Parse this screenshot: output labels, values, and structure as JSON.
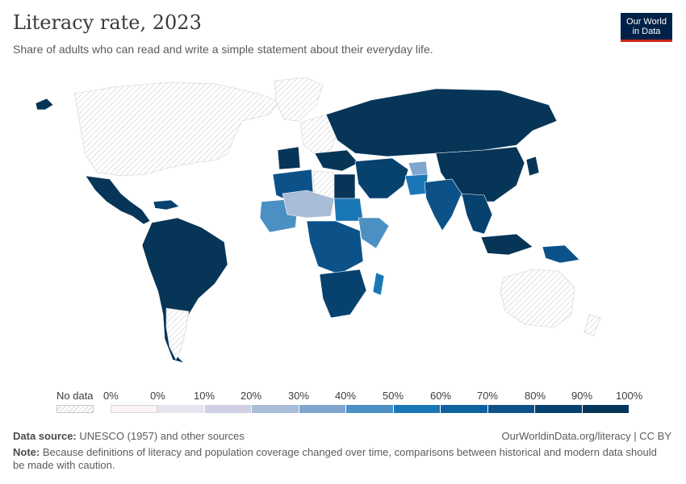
{
  "header": {
    "title": "Literacy rate, 2023",
    "subtitle": "Share of adults who can read and write a simple statement about their everyday life."
  },
  "logo": {
    "line1": "Our World",
    "line2": "in Data"
  },
  "legend": {
    "no_data_label": "No data",
    "ticks": [
      "0%",
      "0%",
      "10%",
      "20%",
      "30%",
      "40%",
      "50%",
      "60%",
      "70%",
      "80%",
      "90%",
      "100%"
    ],
    "bins": [
      {
        "range": "0%",
        "color": "#fbf4f9"
      },
      {
        "range": "0-10%",
        "color": "#e7e4f0"
      },
      {
        "range": "10-20%",
        "color": "#cfd0e4"
      },
      {
        "range": "20-30%",
        "color": "#a9bcd8"
      },
      {
        "range": "30-40%",
        "color": "#7ea6cf"
      },
      {
        "range": "40-50%",
        "color": "#4a90c3"
      },
      {
        "range": "50-60%",
        "color": "#1a77b6"
      },
      {
        "range": "60-70%",
        "color": "#0f62a0"
      },
      {
        "range": "70-80%",
        "color": "#0c5289"
      },
      {
        "range": "80-90%",
        "color": "#07426f"
      },
      {
        "range": "90-100%",
        "color": "#063558"
      }
    ]
  },
  "map_colors": {
    "no_data_fill": "#ffffff",
    "no_data_hatch": "#d4d4d4",
    "very_high": "#063558",
    "high": "#07426f",
    "mid_high": "#0c5289",
    "mid": "#1a77b6",
    "mid_low": "#4a90c3",
    "low": "#7ea6cf",
    "lower": "#a9bcd8"
  },
  "footer": {
    "source_label": "Data source:",
    "source_text": "UNESCO (1957) and other sources",
    "credit": "OurWorldinData.org/literacy | CC BY",
    "note_label": "Note:",
    "note_text": "Because definitions of literacy and population coverage changed over time, comparisons between historical and modern data should be made with caution."
  }
}
